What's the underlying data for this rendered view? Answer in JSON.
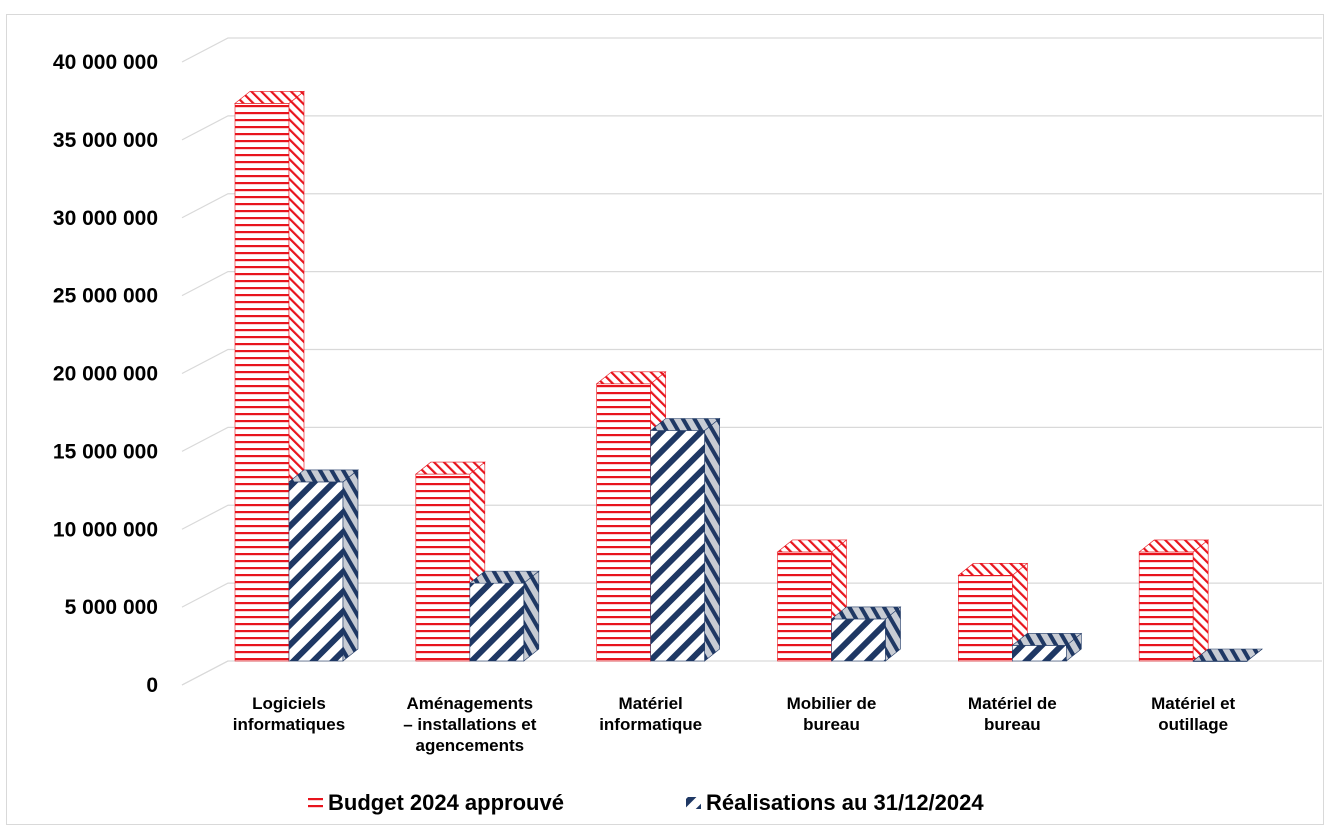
{
  "chart_data": {
    "type": "bar",
    "title": "",
    "xlabel": "",
    "ylabel": "",
    "ylim": [
      0,
      40000000
    ],
    "y_ticks": [
      0,
      5000000,
      10000000,
      15000000,
      20000000,
      25000000,
      30000000,
      35000000,
      40000000
    ],
    "y_tick_labels": [
      "0",
      "5 000 000",
      "10 000 000",
      "15 000 000",
      "20 000 000",
      "25 000 000",
      "30 000 000",
      "35 000 000",
      "40 000 000"
    ],
    "categories": [
      [
        "Logiciels",
        "informatiques"
      ],
      [
        "Aménagements",
        "– installations et",
        "agencements"
      ],
      [
        "Matériel",
        "informatique"
      ],
      [
        "Mobilier de",
        "bureau"
      ],
      [
        "Matériel de",
        "bureau"
      ],
      [
        "Matériel et",
        "outillage"
      ]
    ],
    "series": [
      {
        "name": "Budget 2024 approuvé",
        "values": [
          35800000,
          12000000,
          17800000,
          7000000,
          5500000,
          7000000
        ]
      },
      {
        "name": "Réalisations au 31/12/2024",
        "values": [
          11500000,
          5000000,
          14800000,
          2700000,
          1000000,
          0
        ]
      }
    ],
    "grid": true,
    "legend_position": "bottom",
    "colors": {
      "budget": "#e8141d",
      "realisations": "#1f3864",
      "grid": "#d9d9d9"
    }
  }
}
